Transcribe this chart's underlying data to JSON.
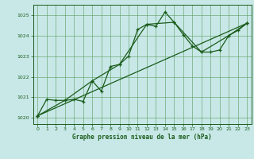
{
  "title": "Graphe pression niveau de la mer (hPa)",
  "bg_color": "#c8e8e8",
  "plot_bg_color": "#c8e8e8",
  "line_color": "#1a5c1a",
  "grid_color": "#5a9a5a",
  "xlim": [
    -0.5,
    23.5
  ],
  "ylim": [
    1019.7,
    1025.5
  ],
  "yticks": [
    1020,
    1021,
    1022,
    1023,
    1024,
    1025
  ],
  "xticks": [
    0,
    1,
    2,
    3,
    4,
    5,
    6,
    7,
    8,
    9,
    10,
    11,
    12,
    13,
    14,
    15,
    16,
    17,
    18,
    19,
    20,
    21,
    22,
    23
  ],
  "series1_x": [
    0,
    1,
    2,
    3,
    4,
    5,
    6,
    7,
    8,
    9,
    10,
    11,
    12,
    13,
    14,
    15,
    16,
    17,
    18,
    19,
    20,
    21,
    22,
    23
  ],
  "series1_y": [
    1020.1,
    1020.9,
    1020.85,
    1020.85,
    1020.9,
    1020.8,
    1021.8,
    1021.3,
    1022.5,
    1022.6,
    1023.0,
    1024.3,
    1024.55,
    1024.45,
    1025.15,
    1024.65,
    1024.05,
    1023.5,
    1023.2,
    1023.2,
    1023.3,
    1024.0,
    1024.25,
    1024.6
  ],
  "series2_x": [
    0,
    3,
    6,
    9,
    12,
    15,
    18,
    21,
    23
  ],
  "series2_y": [
    1020.1,
    1020.85,
    1021.8,
    1022.6,
    1024.55,
    1024.65,
    1023.2,
    1024.0,
    1024.6
  ],
  "series3_x": [
    0,
    23
  ],
  "series3_y": [
    1020.1,
    1024.6
  ]
}
